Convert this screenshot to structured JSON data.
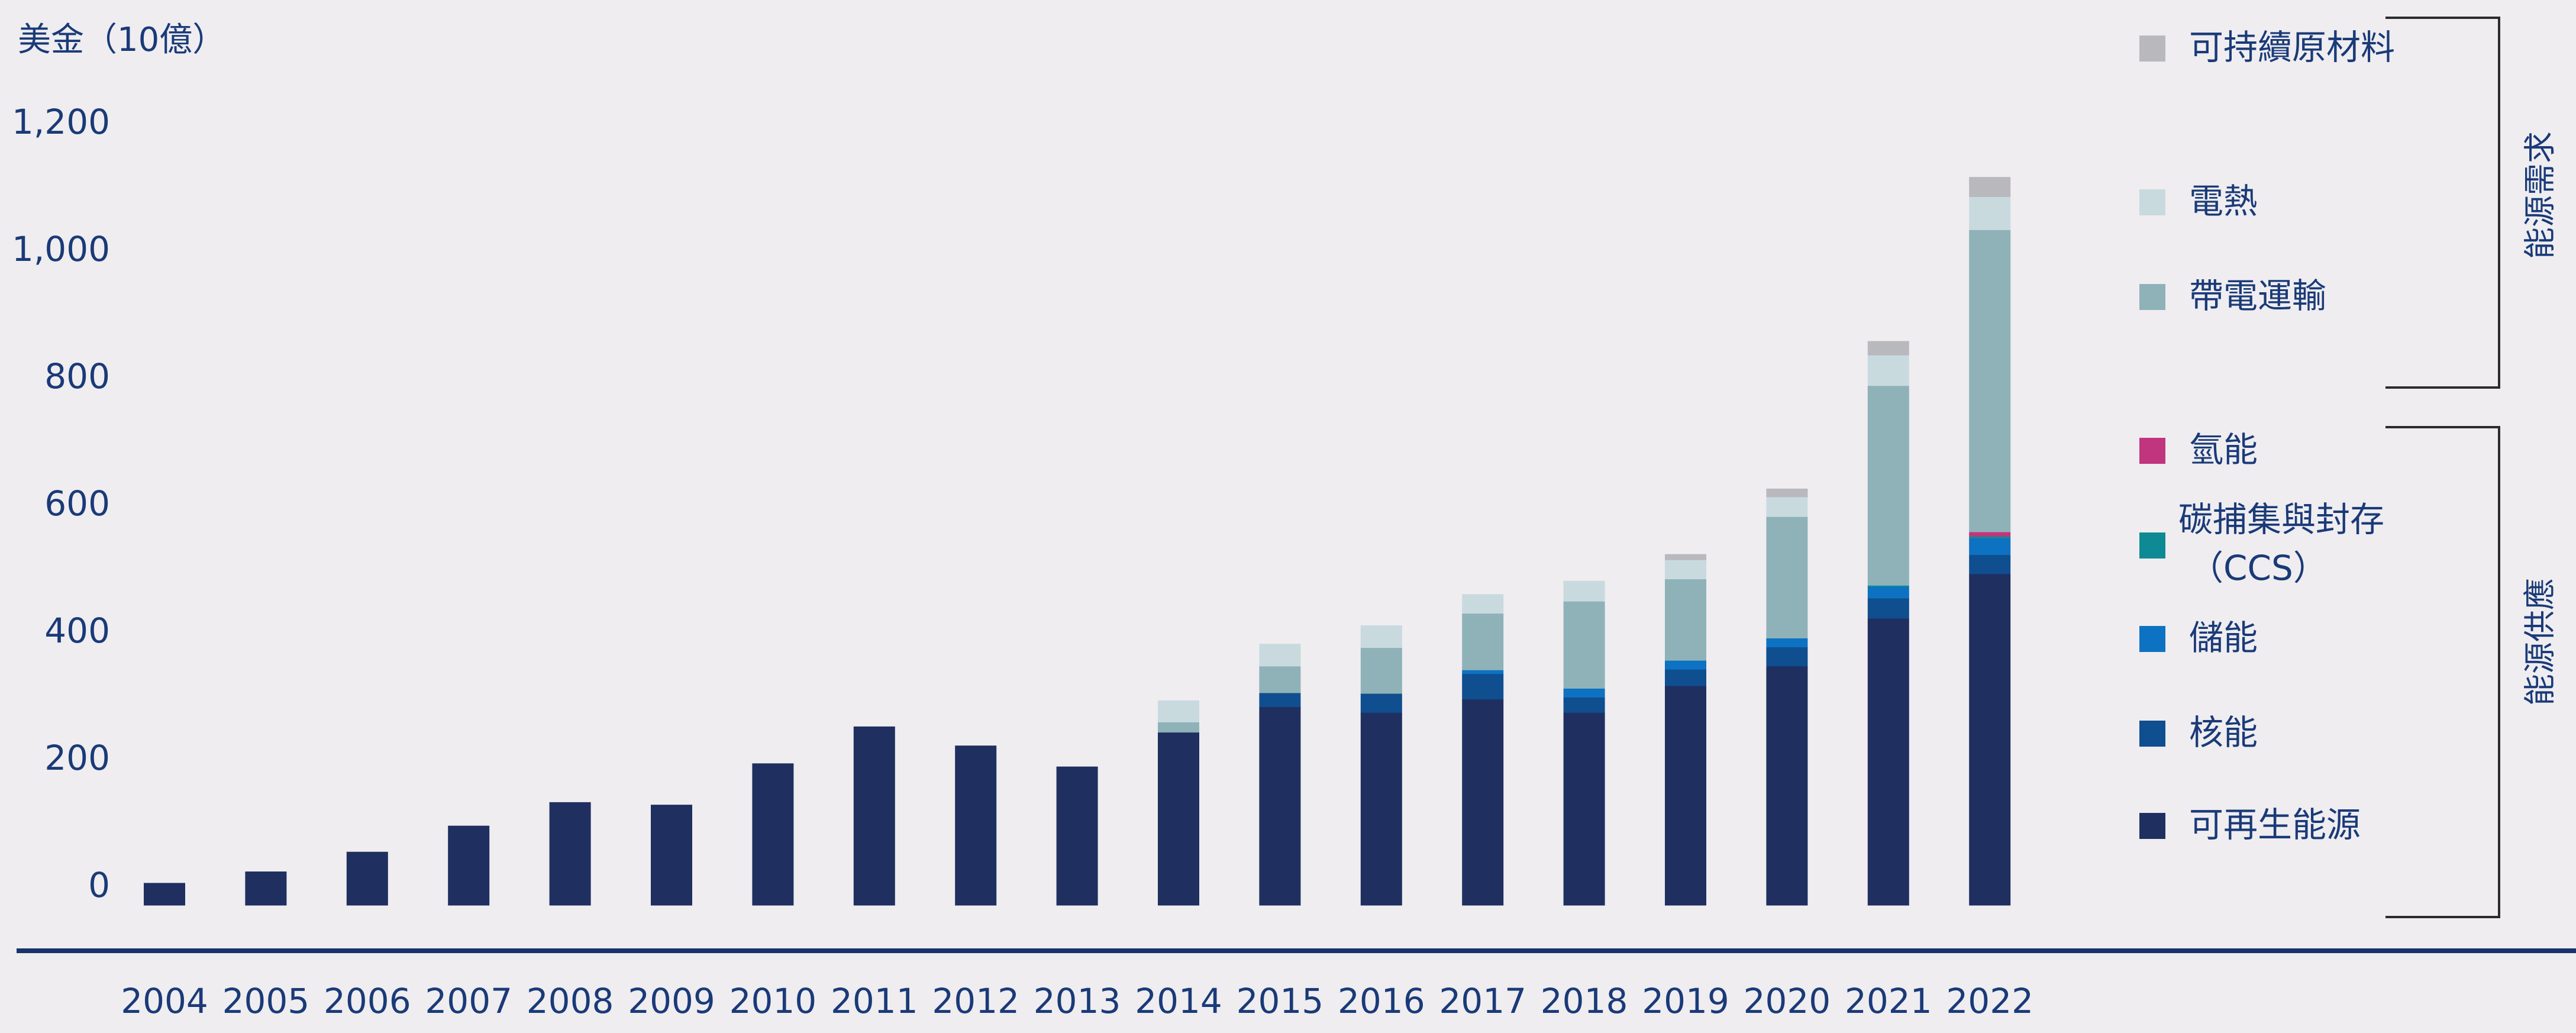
{
  "chart_data": {
    "type": "bar",
    "stacked": true,
    "ylabel": "美金（10億）",
    "y_ticks": [
      "0",
      "200",
      "400",
      "600",
      "800",
      "1,000",
      "1,200"
    ],
    "ylim": [
      0,
      1200
    ],
    "grid": false,
    "legend_position": "right",
    "categories": [
      "2004",
      "2005",
      "2006",
      "2007",
      "2008",
      "2009",
      "2010",
      "2011",
      "2012",
      "2013",
      "2014",
      "2015",
      "2016",
      "2017",
      "2018",
      "2019",
      "2020",
      "2021",
      "2022"
    ],
    "series": [
      {
        "name": "可再生能源",
        "color": "#1f2f5f",
        "values": [
          35,
          53,
          84,
          125,
          162,
          158,
          223,
          281,
          251,
          218,
          272,
          312,
          303,
          324,
          303,
          345,
          376,
          451,
          521
        ]
      },
      {
        "name": "核能",
        "color": "#0f4e8f",
        "values": [
          0,
          0,
          0,
          0,
          0,
          0,
          0,
          0,
          0,
          0,
          0,
          22,
          30,
          40,
          24,
          26,
          30,
          32,
          30
        ]
      },
      {
        "name": "儲能",
        "color": "#0d72c2",
        "values": [
          0,
          0,
          0,
          0,
          0,
          0,
          0,
          0,
          0,
          0,
          0,
          0,
          0,
          6,
          14,
          14,
          14,
          18,
          26
        ]
      },
      {
        "name": "碳捕集與封存（CCS）",
        "color": "#0e8a94",
        "values": [
          0,
          0,
          0,
          0,
          0,
          0,
          0,
          0,
          0,
          0,
          0,
          0,
          0,
          0,
          0,
          0,
          0,
          2,
          3
        ]
      },
      {
        "name": "氫能",
        "color": "#c0357d",
        "values": [
          0,
          0,
          0,
          0,
          0,
          0,
          0,
          0,
          0,
          0,
          0,
          0,
          0,
          0,
          0,
          0,
          0,
          0,
          7
        ]
      },
      {
        "name": "帶電運輸",
        "color": "#8eb2b8",
        "values": [
          0,
          0,
          0,
          0,
          0,
          0,
          0,
          0,
          0,
          0,
          16,
          42,
          72,
          89,
          137,
          128,
          191,
          314,
          475
        ]
      },
      {
        "name": "電熱",
        "color": "#c9dadf",
        "values": [
          0,
          0,
          0,
          0,
          0,
          0,
          0,
          0,
          0,
          0,
          34,
          35,
          35,
          30,
          32,
          30,
          31,
          48,
          52
        ]
      },
      {
        "name": "可持續原材料",
        "color": "#b9b9bd",
        "values": [
          0,
          0,
          0,
          0,
          0,
          0,
          0,
          0,
          0,
          0,
          0,
          0,
          0,
          0,
          0,
          9,
          13,
          22,
          31
        ]
      }
    ],
    "legend_groups": [
      {
        "label": "能源需求",
        "series": [
          "可持續原材料",
          "電熱",
          "帶電運輸"
        ]
      },
      {
        "label": "能源供應",
        "series": [
          "氫能",
          "碳捕集與封存（CCS）",
          "儲能",
          "核能",
          "可再生能源"
        ]
      }
    ]
  },
  "legend": {
    "items": [
      {
        "lines": [
          "可持續原材料"
        ],
        "color": "#b9b9bd"
      },
      {
        "lines": [
          "電熱"
        ],
        "color": "#c9dadf"
      },
      {
        "lines": [
          "帶電運輸"
        ],
        "color": "#8eb2b8"
      },
      {
        "lines": [
          "氫能"
        ],
        "color": "#c0357d"
      },
      {
        "lines": [
          "碳捕集與封存",
          "（CCS）"
        ],
        "color": "#0e8a94"
      },
      {
        "lines": [
          "儲能"
        ],
        "color": "#0d72c2"
      },
      {
        "lines": [
          "核能"
        ],
        "color": "#0f4e8f"
      },
      {
        "lines": [
          "可再生能源"
        ],
        "color": "#1f2f5f"
      }
    ],
    "group_demand": "能源需求",
    "group_supply": "能源供應"
  },
  "colors": {
    "background": "#efedf0",
    "axis_text": "#1a3a78",
    "baseline": "#18336a",
    "bracket": "#2b2b2b"
  }
}
